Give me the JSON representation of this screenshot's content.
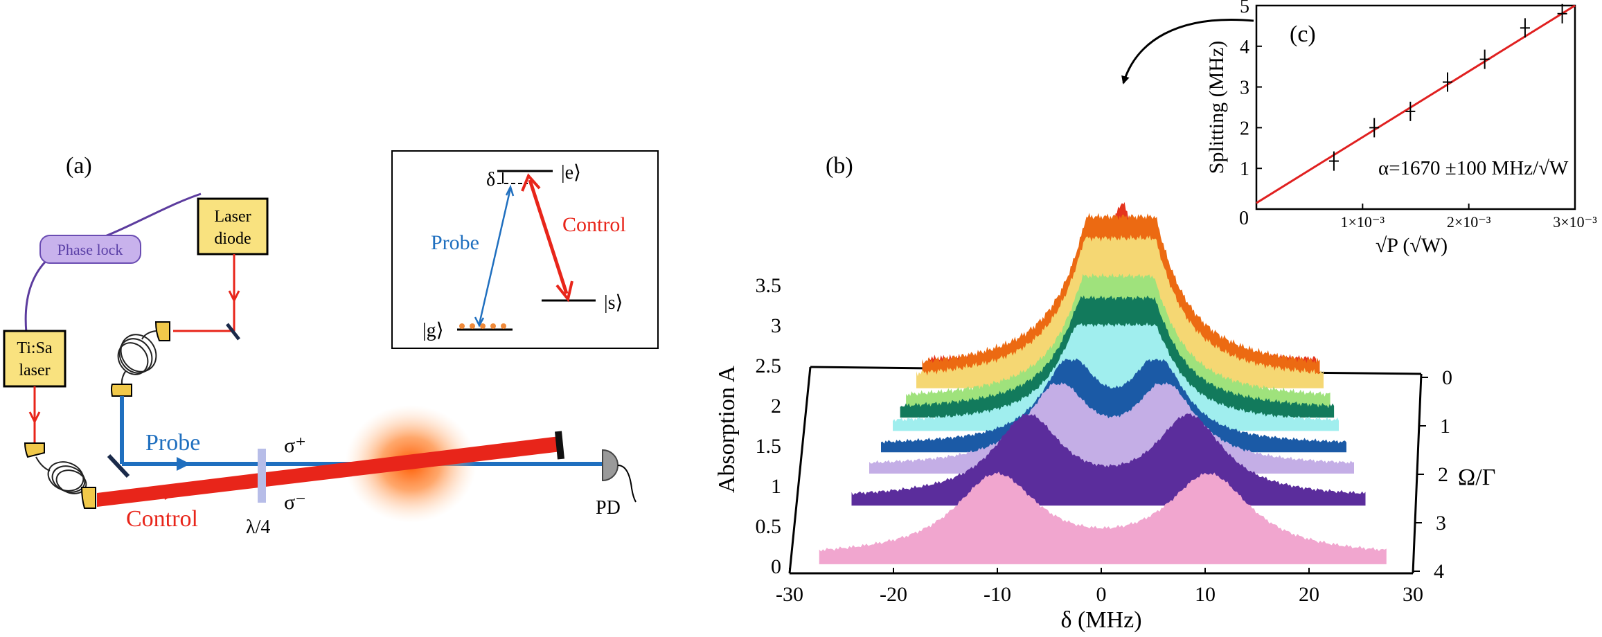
{
  "panel_a": {
    "label": "(a)",
    "phase_lock": "Phase lock",
    "laser_diode_line1": "Laser",
    "laser_diode_line2": "diode",
    "tisa_line1": "Ti:Sa",
    "tisa_line2": "laser",
    "probe": "Probe",
    "control": "Control",
    "lambda4": "λ/4",
    "sigma_plus": "σ⁺",
    "sigma_minus": "σ⁻",
    "pd": "PD",
    "colors": {
      "probe": "#1f6fbf",
      "control": "#e8251a",
      "box": "#f9e27f",
      "phaselock_fill": "#c8b2ec",
      "phaselock_text": "#5a3fa6"
    }
  },
  "level_diagram": {
    "delta": "δ",
    "excited": "|e⟩",
    "ground": "|g⟩",
    "storage": "|s⟩",
    "probe": "Probe",
    "control": "Control"
  },
  "panel_b": {
    "label": "(b)",
    "xlabel": "δ (MHz)",
    "ylabel": "Absorption A",
    "zlabel": "Ω/Γ",
    "xticks": [
      "-30",
      "-20",
      "-10",
      "0",
      "10",
      "20",
      "30"
    ],
    "yticks": [
      "0",
      "0.5",
      "1",
      "1.5",
      "2",
      "2.5",
      "3",
      "3.5"
    ],
    "zticks": [
      "0",
      "1",
      "2",
      "3",
      "4"
    ]
  },
  "panel_c": {
    "label": "(c)",
    "xlabel": "√P (√W)",
    "ylabel": "Splitting (MHz)",
    "annotation": "α=1670 ±100 MHz/√W",
    "xticks": [
      "0",
      "1×10⁻³",
      "2×10⁻³",
      "3×10⁻³"
    ],
    "yticks": [
      "1",
      "2",
      "3",
      "4",
      "5"
    ]
  },
  "chart_data": [
    {
      "type": "line",
      "title": "",
      "xlabel": "δ (MHz)",
      "ylabel": "Absorption A",
      "zlabel": "Ω/Γ",
      "xlim": [
        -30,
        30
      ],
      "ylim": [
        0,
        3.5
      ],
      "zlim": [
        0,
        4
      ],
      "series": [
        {
          "color": "#e5341d",
          "omega": 0.0,
          "peak": 2.9,
          "splitting": 0.0,
          "width": 5.5
        },
        {
          "color": "#ec6a12",
          "omega": 0.2,
          "peak": 2.8,
          "splitting": 0.9,
          "width": 5.2
        },
        {
          "color": "#f5d773",
          "omega": 0.4,
          "peak": 2.6,
          "splitting": 1.6,
          "width": 5.0
        },
        {
          "color": "#9fe27c",
          "omega": 0.75,
          "peak": 2.25,
          "splitting": 2.3,
          "width": 4.5
        },
        {
          "color": "#127a5c",
          "omega": 0.95,
          "peak": 2.05,
          "splitting": 2.9,
          "width": 4.3
        },
        {
          "color": "#a0eeee",
          "omega": 1.2,
          "peak": 1.8,
          "splitting": 3.4,
          "width": 4.2
        },
        {
          "color": "#1b5aa6",
          "omega": 1.6,
          "peak": 1.55,
          "splitting": 5.3,
          "width": 4.0
        },
        {
          "color": "#c4aee6",
          "omega": 2.0,
          "peak": 1.5,
          "splitting": 6.2,
          "width": 4.3
        },
        {
          "color": "#5b2d9c",
          "omega": 2.6,
          "peak": 1.55,
          "splitting": 8.8,
          "width": 4.5
        },
        {
          "color": "#f1a6cf",
          "omega": 3.7,
          "peak": 1.55,
          "splitting": 10.5,
          "width": 5.0
        }
      ]
    },
    {
      "type": "scatter",
      "title": "",
      "xlabel": "√P (√W)",
      "ylabel": "Splitting (MHz)",
      "xlim": [
        0,
        0.003
      ],
      "ylim": [
        0,
        5
      ],
      "points": [
        {
          "x": 0.00073,
          "y": 1.18
        },
        {
          "x": 0.00111,
          "y": 2.0
        },
        {
          "x": 0.00145,
          "y": 2.4
        },
        {
          "x": 0.0018,
          "y": 3.12
        },
        {
          "x": 0.00215,
          "y": 3.68
        },
        {
          "x": 0.00253,
          "y": 4.45
        },
        {
          "x": 0.00288,
          "y": 4.8
        }
      ],
      "fit": {
        "x": [
          0,
          0.003
        ],
        "y": [
          0.15,
          5.0
        ],
        "color": "#e02020"
      }
    }
  ]
}
